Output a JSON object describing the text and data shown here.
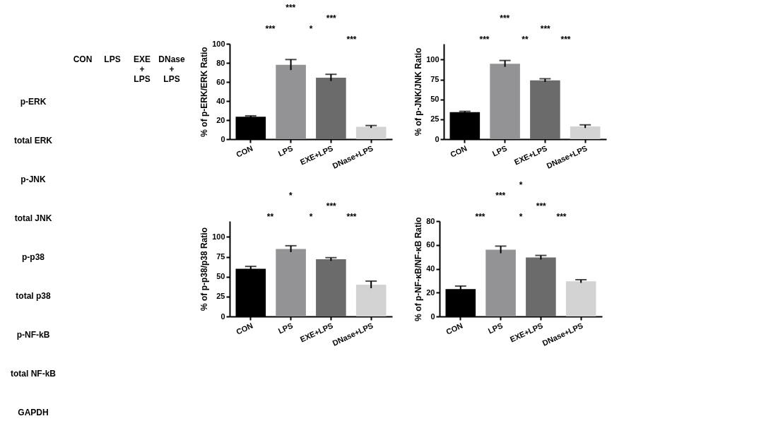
{
  "chart_data": [
    {
      "type": "other",
      "categories": [
        "CON",
        "LPS",
        "EXE\n+\nLPS",
        "DNase\n+\nLPS"
      ],
      "y_categories": [
        "p-ERK",
        "total ERK",
        "p-JNK",
        "total JNK",
        "p-p38",
        "total p38",
        "p-NF-kB",
        "total NF-kB",
        "GAPDH"
      ]
    },
    {
      "type": "bar",
      "ylabel": "% of p-ERK/ERK Ratio",
      "categories": [
        "CON",
        "LPS",
        "EXE+LPS",
        "DNase+LPS"
      ],
      "values": [
        23.5,
        78,
        64.5,
        13
      ],
      "errors": [
        1,
        5.5,
        3.5,
        1.3
      ],
      "colors": [
        "#000000",
        "#939396",
        "#6b6b6b",
        "#d3d3d3"
      ],
      "ylim": [
        0,
        100
      ],
      "yticks": [
        0,
        20,
        40,
        60,
        80,
        100
      ],
      "annotations": [
        "***",
        "***",
        "***",
        "*",
        "***"
      ]
    },
    {
      "type": "bar",
      "ylabel": "% of p-JNK/JNK Ratio",
      "categories": [
        "CON",
        "LPS",
        "EXE+LPS",
        "DNase+LPS"
      ],
      "values": [
        34,
        95,
        74,
        16
      ],
      "errors": [
        1,
        4,
        2,
        2
      ],
      "colors": [
        "#000000",
        "#939396",
        "#6b6b6b",
        "#d3d3d3"
      ],
      "ylim": [
        0,
        120
      ],
      "yticks": [
        0,
        25,
        50,
        75,
        100
      ],
      "annotations": [
        "***",
        "***",
        "***",
        "**",
        "***"
      ]
    },
    {
      "type": "bar",
      "ylabel": "% of p-p38/p38 Ratio",
      "categories": [
        "CON",
        "LPS",
        "EXE+LPS",
        "DNase+LPS"
      ],
      "values": [
        60,
        85,
        72,
        40
      ],
      "errors": [
        3,
        4,
        2,
        4.5
      ],
      "colors": [
        "#000000",
        "#939396",
        "#6b6b6b",
        "#d3d3d3"
      ],
      "ylim": [
        0,
        120
      ],
      "yticks": [
        0,
        25,
        50,
        75,
        100
      ],
      "annotations": [
        "*",
        "***",
        "**",
        "*",
        "***"
      ]
    },
    {
      "type": "bar",
      "ylabel": "% of p-NF-κB/NF-κB Ratio",
      "categories": [
        "CON",
        "LPS",
        "EXE+LPS",
        "DNase+LPS"
      ],
      "values": [
        23,
        56,
        49.5,
        29.5
      ],
      "errors": [
        2.5,
        3,
        1.7,
        1.3
      ],
      "colors": [
        "#000000",
        "#939396",
        "#6b6b6b",
        "#d3d3d3"
      ],
      "ylim": [
        0,
        80
      ],
      "yticks": [
        0,
        20,
        40,
        60,
        80
      ],
      "annotations": [
        "*",
        "***",
        "***",
        "***",
        "*",
        "***"
      ]
    }
  ]
}
